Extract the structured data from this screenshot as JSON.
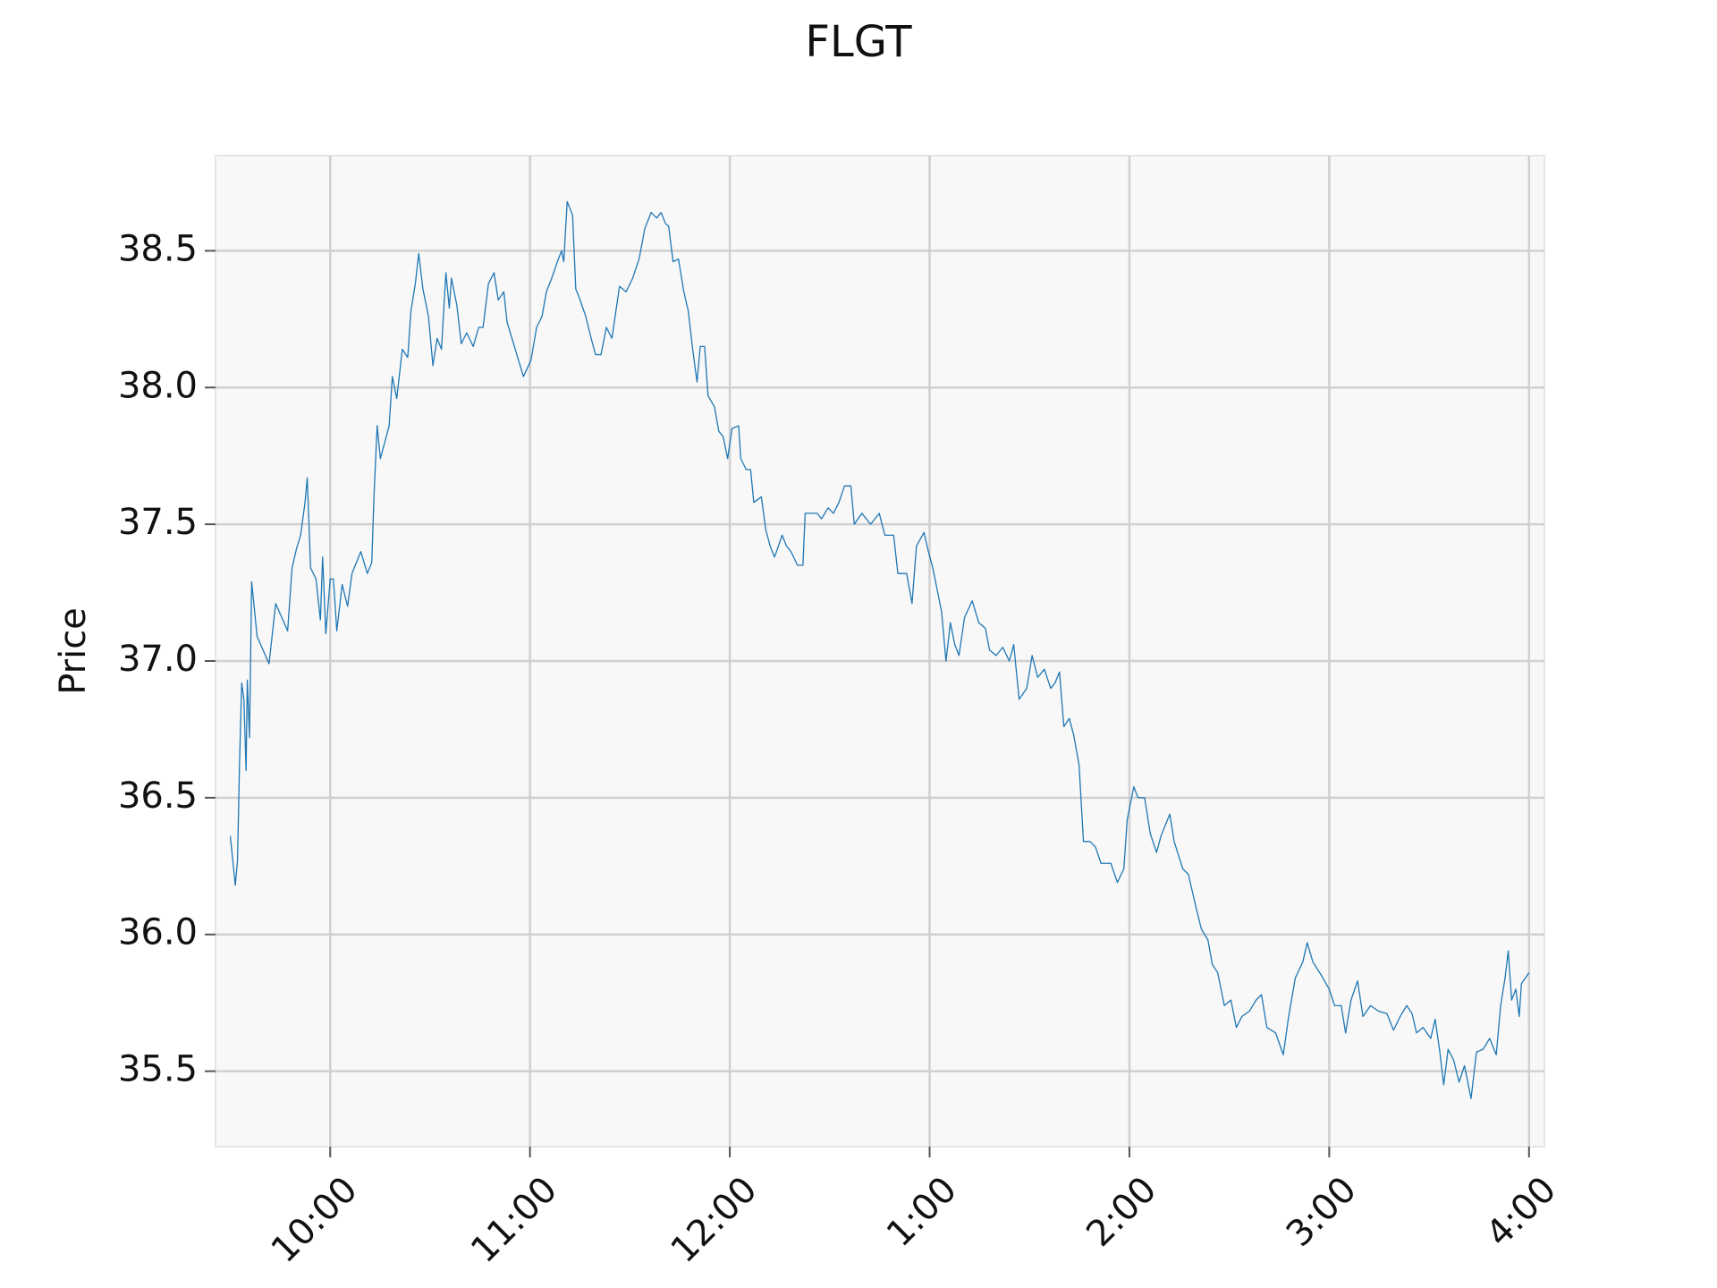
{
  "chart_data": {
    "type": "line",
    "title": "FLGT",
    "y_label": "Price",
    "color": "#1f77b4",
    "grid": true,
    "xlim": [
      9.426,
      16.077
    ],
    "ylim": [
      35.224,
      38.848
    ],
    "xticks": [
      {
        "value": 10,
        "label": "10:00"
      },
      {
        "value": 11,
        "label": "11:00"
      },
      {
        "value": 12,
        "label": "12:00"
      },
      {
        "value": 13,
        "label": "1:00"
      },
      {
        "value": 14,
        "label": "2:00"
      },
      {
        "value": 15,
        "label": "3:00"
      },
      {
        "value": 16,
        "label": "4:00"
      }
    ],
    "yticks": [
      {
        "value": 35.5,
        "label": "35.5"
      },
      {
        "value": 36,
        "label": "36.0"
      },
      {
        "value": 36.5,
        "label": "36.5"
      },
      {
        "value": 37,
        "label": "37.0"
      },
      {
        "value": 37.5,
        "label": "37.5"
      },
      {
        "value": 38,
        "label": "38.0"
      },
      {
        "value": 38.5,
        "label": "38.5"
      }
    ],
    "x": [
      9.5,
      9.525,
      9.536,
      9.546,
      9.557,
      9.568,
      9.579,
      9.585,
      9.596,
      9.607,
      9.634,
      9.694,
      9.727,
      9.787,
      9.809,
      9.831,
      9.852,
      9.874,
      9.885,
      9.902,
      9.929,
      9.951,
      9.962,
      9.978,
      10.0,
      10.016,
      10.033,
      10.06,
      10.087,
      10.109,
      10.153,
      10.186,
      10.208,
      10.219,
      10.235,
      10.251,
      10.273,
      10.295,
      10.311,
      10.333,
      10.361,
      10.388,
      10.404,
      10.426,
      10.443,
      10.464,
      10.492,
      10.514,
      10.535,
      10.557,
      10.579,
      10.596,
      10.607,
      10.634,
      10.656,
      10.683,
      10.716,
      10.743,
      10.765,
      10.792,
      10.82,
      10.841,
      10.869,
      10.885,
      10.967,
      11.005,
      11.033,
      11.06,
      11.082,
      11.109,
      11.137,
      11.158,
      11.169,
      11.186,
      11.213,
      11.229,
      11.246,
      11.279,
      11.306,
      11.328,
      11.355,
      11.382,
      11.41,
      11.426,
      11.448,
      11.481,
      11.514,
      11.546,
      11.574,
      11.606,
      11.634,
      11.656,
      11.678,
      11.694,
      11.716,
      11.743,
      11.77,
      11.792,
      11.814,
      11.836,
      11.852,
      11.874,
      11.891,
      11.923,
      11.945,
      11.967,
      11.989,
      12.011,
      12.044,
      12.055,
      12.082,
      12.104,
      12.12,
      12.158,
      12.18,
      12.202,
      12.224,
      12.262,
      12.284,
      12.306,
      12.339,
      12.366,
      12.377,
      12.437,
      12.459,
      12.492,
      12.519,
      12.546,
      12.574,
      12.606,
      12.623,
      12.661,
      12.705,
      12.748,
      12.776,
      12.82,
      12.841,
      12.885,
      12.912,
      12.934,
      12.972,
      12.994,
      13.016,
      13.038,
      13.06,
      13.082,
      13.104,
      13.126,
      13.147,
      13.175,
      13.213,
      13.246,
      13.279,
      13.3,
      13.333,
      13.366,
      13.399,
      13.421,
      13.448,
      13.486,
      13.513,
      13.541,
      13.574,
      13.606,
      13.628,
      13.65,
      13.672,
      13.699,
      13.721,
      13.748,
      13.77,
      13.803,
      13.83,
      13.858,
      13.907,
      13.94,
      13.972,
      13.989,
      14.022,
      14.043,
      14.076,
      14.104,
      14.136,
      14.158,
      14.202,
      14.224,
      14.267,
      14.295,
      14.333,
      14.36,
      14.393,
      14.415,
      14.442,
      14.475,
      14.508,
      14.535,
      14.563,
      14.601,
      14.634,
      14.661,
      14.688,
      14.732,
      14.77,
      14.797,
      14.83,
      14.868,
      14.89,
      14.918,
      14.961,
      15.0,
      15.027,
      15.06,
      15.082,
      15.109,
      15.142,
      15.169,
      15.207,
      15.246,
      15.289,
      15.322,
      15.355,
      15.388,
      15.415,
      15.437,
      15.47,
      15.508,
      15.53,
      15.552,
      15.573,
      15.595,
      15.623,
      15.65,
      15.677,
      15.71,
      15.737,
      15.77,
      15.803,
      15.836,
      15.858,
      15.88,
      15.896,
      15.913,
      15.934,
      15.951,
      15.962,
      16.0
    ],
    "values": [
      36.36,
      36.18,
      36.27,
      36.62,
      36.92,
      36.86,
      36.6,
      36.93,
      36.72,
      37.29,
      37.09,
      36.99,
      37.21,
      37.11,
      37.34,
      37.41,
      37.46,
      37.58,
      37.67,
      37.34,
      37.3,
      37.15,
      37.38,
      37.1,
      37.3,
      37.3,
      37.11,
      37.28,
      37.2,
      37.32,
      37.4,
      37.32,
      37.36,
      37.6,
      37.86,
      37.74,
      37.8,
      37.86,
      38.04,
      37.96,
      38.14,
      38.11,
      38.28,
      38.38,
      38.49,
      38.36,
      38.26,
      38.08,
      38.18,
      38.14,
      38.42,
      38.29,
      38.4,
      38.3,
      38.16,
      38.2,
      38.15,
      38.22,
      38.22,
      38.38,
      38.42,
      38.32,
      38.35,
      38.24,
      38.04,
      38.1,
      38.22,
      38.26,
      38.35,
      38.4,
      38.46,
      38.5,
      38.46,
      38.68,
      38.63,
      38.36,
      38.33,
      38.26,
      38.18,
      38.12,
      38.12,
      38.22,
      38.18,
      38.26,
      38.37,
      38.35,
      38.4,
      38.47,
      38.58,
      38.64,
      38.62,
      38.64,
      38.6,
      38.59,
      38.46,
      38.47,
      38.35,
      38.28,
      38.14,
      38.02,
      38.15,
      38.15,
      37.97,
      37.93,
      37.84,
      37.82,
      37.74,
      37.85,
      37.86,
      37.74,
      37.7,
      37.7,
      37.58,
      37.6,
      37.48,
      37.42,
      37.38,
      37.46,
      37.42,
      37.4,
      37.35,
      37.35,
      37.54,
      37.54,
      37.52,
      37.56,
      37.54,
      37.58,
      37.64,
      37.64,
      37.5,
      37.54,
      37.5,
      37.54,
      37.46,
      37.46,
      37.32,
      37.32,
      37.21,
      37.42,
      37.47,
      37.4,
      37.34,
      37.26,
      37.18,
      37.0,
      37.14,
      37.06,
      37.02,
      37.16,
      37.22,
      37.14,
      37.12,
      37.04,
      37.02,
      37.05,
      37.0,
      37.06,
      36.86,
      36.9,
      37.02,
      36.94,
      36.97,
      36.9,
      36.92,
      36.96,
      36.76,
      36.79,
      36.73,
      36.62,
      36.34,
      36.34,
      36.32,
      36.26,
      36.26,
      36.19,
      36.24,
      36.42,
      36.54,
      36.5,
      36.5,
      36.37,
      36.3,
      36.36,
      36.44,
      36.34,
      36.24,
      36.22,
      36.1,
      36.02,
      35.98,
      35.89,
      35.86,
      35.74,
      35.76,
      35.66,
      35.7,
      35.72,
      35.76,
      35.78,
      35.66,
      35.64,
      35.56,
      35.7,
      35.84,
      35.9,
      35.97,
      35.9,
      35.85,
      35.8,
      35.74,
      35.74,
      35.64,
      35.76,
      35.83,
      35.7,
      35.74,
      35.72,
      35.71,
      35.65,
      35.7,
      35.74,
      35.71,
      35.64,
      35.66,
      35.62,
      35.69,
      35.58,
      35.45,
      35.58,
      35.54,
      35.46,
      35.52,
      35.4,
      35.57,
      35.58,
      35.62,
      35.56,
      35.74,
      35.84,
      35.94,
      35.76,
      35.8,
      35.7,
      35.82,
      35.86
    ]
  }
}
